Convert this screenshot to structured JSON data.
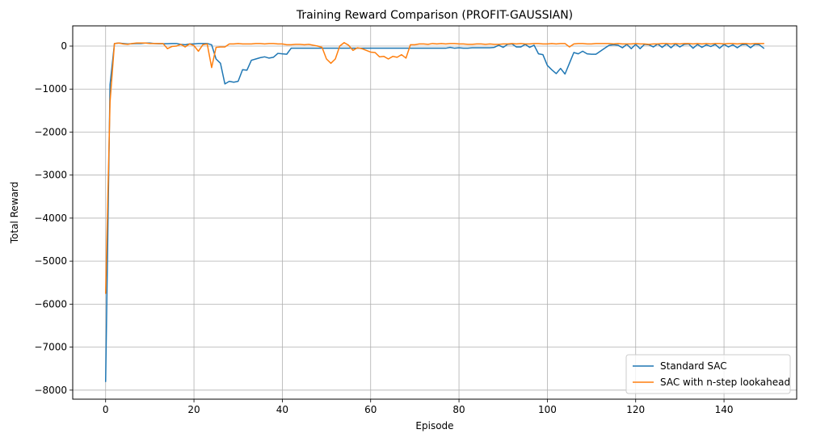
{
  "chart_data": {
    "type": "line",
    "title": "Training Reward Comparison (PROFIT-GAUSSIAN)",
    "xlabel": "Episode",
    "ylabel": "Total Reward",
    "xlim": [
      -7.45,
      156.45
    ],
    "ylim": [
      -8210,
      470
    ],
    "xticks": [
      0,
      20,
      40,
      60,
      80,
      100,
      120,
      140
    ],
    "xtick_labels": [
      "0",
      "20",
      "40",
      "60",
      "80",
      "100",
      "120",
      "140"
    ],
    "yticks": [
      -8000,
      -7000,
      -6000,
      -5000,
      -4000,
      -3000,
      -2000,
      -1000,
      0
    ],
    "ytick_labels": [
      "−8000",
      "−7000",
      "−6000",
      "−5000",
      "−4000",
      "−3000",
      "−2000",
      "−1000",
      "0"
    ],
    "grid": true,
    "legend_position": "lower-right",
    "series": [
      {
        "name": "Standard SAC",
        "color": "#1f77b4",
        "values": [
          -7800,
          -900,
          60,
          70,
          60,
          50,
          55,
          60,
          60,
          70,
          70,
          60,
          55,
          55,
          55,
          60,
          60,
          40,
          30,
          50,
          50,
          60,
          60,
          60,
          30,
          -300,
          -400,
          -880,
          -820,
          -840,
          -820,
          -550,
          -560,
          -330,
          -300,
          -270,
          -250,
          -280,
          -260,
          -170,
          -180,
          -190,
          -50,
          -50,
          -50,
          -50,
          -50,
          -50,
          -50,
          -50,
          -50,
          -50,
          -50,
          -50,
          -50,
          -50,
          -50,
          -50,
          -50,
          -50,
          -50,
          -50,
          -50,
          -50,
          -50,
          -50,
          -50,
          -50,
          -50,
          -50,
          -50,
          -50,
          -50,
          -50,
          -50,
          -50,
          -50,
          -50,
          -30,
          -50,
          -40,
          -50,
          -50,
          -40,
          -40,
          -40,
          -40,
          -40,
          -30,
          20,
          -30,
          40,
          50,
          -20,
          -20,
          40,
          -30,
          20,
          -180,
          -200,
          -450,
          -550,
          -640,
          -520,
          -650,
          -400,
          -150,
          -180,
          -120,
          -180,
          -190,
          -190,
          -120,
          -50,
          20,
          30,
          20,
          -40,
          40,
          -60,
          40,
          -60,
          40,
          30,
          -20,
          50,
          -30,
          50,
          -40,
          50,
          -20,
          40,
          50,
          -50,
          40,
          -30,
          30,
          -10,
          40,
          -50,
          40,
          -20,
          30,
          -40,
          30,
          40,
          -40,
          40,
          30,
          -50
        ],
        "x_start": 0
      },
      {
        "name": "SAC with n-step lookahead",
        "color": "#ff7f0e",
        "values": [
          -5750,
          -1300,
          60,
          70,
          50,
          40,
          60,
          70,
          70,
          70,
          60,
          60,
          60,
          60,
          -60,
          -10,
          0,
          40,
          -20,
          50,
          10,
          -120,
          30,
          50,
          -500,
          -30,
          -20,
          -20,
          50,
          50,
          60,
          50,
          50,
          50,
          60,
          60,
          50,
          60,
          60,
          50,
          50,
          30,
          30,
          40,
          40,
          30,
          40,
          20,
          0,
          -30,
          -300,
          -400,
          -300,
          0,
          80,
          20,
          -100,
          -40,
          -60,
          -100,
          -140,
          -150,
          -250,
          -240,
          -300,
          -240,
          -260,
          -200,
          -280,
          30,
          30,
          50,
          50,
          40,
          60,
          50,
          60,
          50,
          60,
          60,
          50,
          50,
          40,
          40,
          50,
          50,
          40,
          50,
          40,
          40,
          50,
          50,
          60,
          50,
          60,
          50,
          50,
          60,
          60,
          50,
          50,
          60,
          50,
          60,
          60,
          -20,
          50,
          60,
          60,
          50,
          50,
          60,
          60,
          60,
          60,
          50,
          60,
          50,
          50,
          50,
          60,
          50,
          50,
          40,
          50,
          50,
          60,
          60,
          50,
          60,
          50,
          60,
          60,
          50,
          60,
          50,
          60,
          50,
          60,
          60,
          50,
          60,
          60,
          50,
          60,
          60,
          50,
          60,
          60,
          60
        ],
        "x_start": 0
      }
    ]
  }
}
